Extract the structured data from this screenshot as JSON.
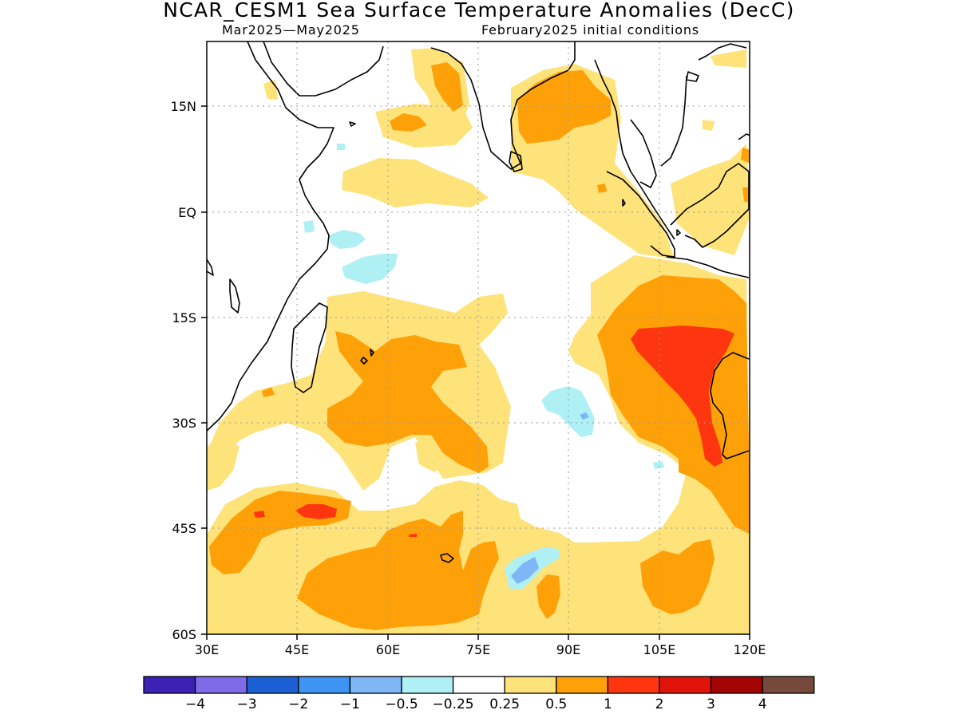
{
  "header": {
    "title": "NCAR_CESM1 Sea Surface Temperature Anomalies (DecC)",
    "subtitle_left": "Mar2025—May2025",
    "subtitle_right": "February2025 initial conditions"
  },
  "map": {
    "lat_axis": [
      "15N",
      "EQ",
      "15S",
      "30S",
      "45S",
      "60S"
    ],
    "lon_axis": [
      "30E",
      "45E",
      "60E",
      "75E",
      "90E",
      "105E",
      "120E"
    ],
    "lon_range": [
      30,
      120
    ],
    "lat_range": [
      -60,
      24
    ],
    "grid": true
  },
  "legend": {
    "labels": [
      "−4",
      "−3",
      "−2",
      "−1",
      "−0.5",
      "−0.25",
      "0.25",
      "0.5",
      "1",
      "2",
      "3",
      "4"
    ],
    "colors": [
      "#3b22b5",
      "#7f6be8",
      "#1a60d4",
      "#3d94f2",
      "#7fb6f5",
      "#aff0f5",
      "#ffffff",
      "#fee27a",
      "#fea108",
      "#fe3610",
      "#e01408",
      "#a30404",
      "#754a3c"
    ]
  },
  "colors": {
    "weak_warm": "#fee27a",
    "moderate_warm": "#fea108",
    "strong_warm": "#fe3610",
    "weak_cool": "#aff0f5",
    "moderate_cool": "#7fb6f5"
  }
}
